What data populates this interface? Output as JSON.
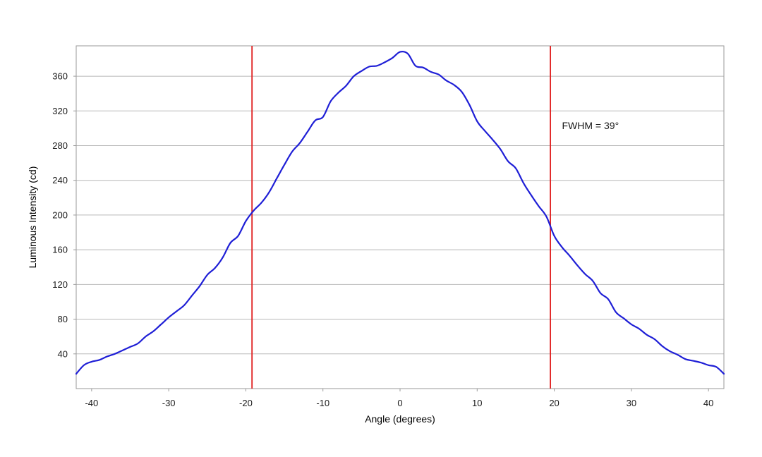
{
  "chart_data": {
    "type": "line",
    "title": "",
    "xlabel": "Angle (degrees)",
    "ylabel": "Luminous Intensity (cd)",
    "xlim": [
      -42,
      42
    ],
    "ylim": [
      0,
      395
    ],
    "x_ticks": [
      -40,
      -30,
      -20,
      -10,
      0,
      10,
      20,
      30,
      40
    ],
    "y_ticks": [
      40,
      80,
      120,
      160,
      200,
      240,
      280,
      320,
      360
    ],
    "grid": "horizontal",
    "series": [
      {
        "color": "#1f1fd6",
        "x": [
          -42,
          -41,
          -40,
          -39,
          -38,
          -37,
          -36,
          -35,
          -34,
          -33,
          -32,
          -31,
          -30,
          -29,
          -28,
          -27,
          -26,
          -25,
          -24,
          -23,
          -22,
          -21,
          -20,
          -19,
          -18,
          -17,
          -16,
          -15,
          -14,
          -13,
          -12,
          -11,
          -10,
          -9,
          -8,
          -7,
          -6,
          -5,
          -4,
          -3,
          -2,
          -1,
          0,
          1,
          2,
          3,
          4,
          5,
          6,
          7,
          8,
          9,
          10,
          11,
          12,
          13,
          14,
          15,
          16,
          17,
          18,
          19,
          20,
          21,
          22,
          23,
          24,
          25,
          26,
          27,
          28,
          29,
          30,
          31,
          32,
          33,
          34,
          35,
          36,
          37,
          38,
          39,
          40,
          41,
          42
        ],
        "y": [
          17,
          27,
          31,
          33,
          37,
          40,
          44,
          48,
          52,
          60,
          66,
          74,
          82,
          89,
          96,
          107,
          118,
          131,
          139,
          151,
          168,
          176,
          193,
          205,
          214,
          226,
          242,
          258,
          273,
          283,
          296,
          309,
          313,
          331,
          341,
          349,
          360,
          366,
          371,
          372,
          376,
          381,
          388,
          386,
          372,
          370,
          365,
          362,
          355,
          350,
          342,
          327,
          308,
          297,
          287,
          276,
          262,
          254,
          237,
          223,
          210,
          198,
          176,
          163,
          153,
          142,
          132,
          124,
          110,
          103,
          88,
          81,
          74,
          69,
          62,
          57,
          49,
          43,
          39,
          34,
          32,
          30,
          27,
          25,
          17
        ]
      }
    ],
    "vertical_lines": [
      {
        "x": -19.2,
        "color": "#e02020"
      },
      {
        "x": 19.5,
        "color": "#e02020"
      }
    ],
    "annotations": [
      {
        "text": "FWHM = 39°",
        "x": 21,
        "y": 299
      }
    ]
  }
}
